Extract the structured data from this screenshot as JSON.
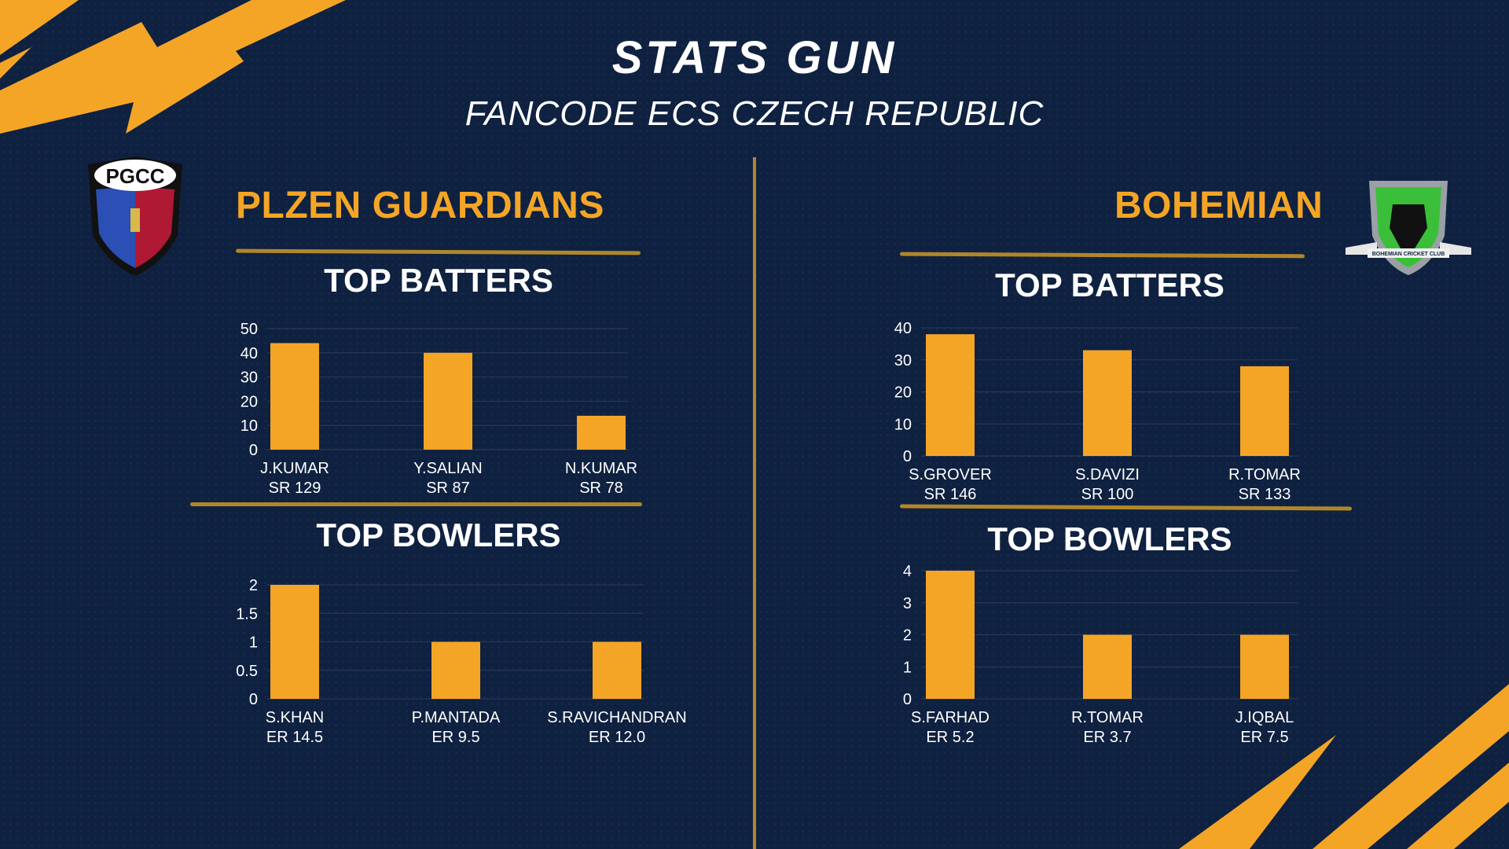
{
  "header": {
    "title": "STATS GUN",
    "subtitle": "FANCODE ECS CZECH REPUBLIC"
  },
  "teams": {
    "left": {
      "name": "PLZEN GUARDIANS",
      "logo_text": "PGCC"
    },
    "right": {
      "name": "BOHEMIAN",
      "logo_text": "BOHEMIAN CRICKET CLUB"
    }
  },
  "sections": {
    "left_batters": "TOP BATTERS",
    "left_bowlers": "TOP BOWLERS",
    "right_batters": "TOP BATTERS",
    "right_bowlers": "TOP BOWLERS"
  },
  "colors": {
    "background": "#0f2140",
    "accent": "#f5a526",
    "rule": "#b0862a",
    "text": "#ffffff"
  },
  "chart_data": [
    {
      "type": "bar",
      "title": "TOP BATTERS",
      "categories": [
        "J.KUMAR",
        "Y.SALIAN",
        "N.KUMAR"
      ],
      "sublabels": [
        "SR 129",
        "SR 87",
        "SR 78"
      ],
      "values": [
        44,
        40,
        14
      ],
      "ylim": [
        0,
        50
      ],
      "yticks": [
        "0",
        "10",
        "20",
        "30",
        "40",
        "50"
      ],
      "grid": true
    },
    {
      "type": "bar",
      "title": "TOP BOWLERS",
      "categories": [
        "S.KHAN",
        "P.MANTADA",
        "S.RAVICHANDRAN"
      ],
      "sublabels": [
        "ER 14.5",
        "ER 9.5",
        "ER 12.0"
      ],
      "values": [
        2,
        1,
        1
      ],
      "ylim": [
        0,
        2
      ],
      "yticks": [
        "0",
        "0.5",
        "1",
        "1.5",
        "2"
      ],
      "grid": true
    },
    {
      "type": "bar",
      "title": "TOP BATTERS",
      "categories": [
        "S.GROVER",
        "S.DAVIZI",
        "R.TOMAR"
      ],
      "sublabels": [
        "SR 146",
        "SR 100",
        "SR 133"
      ],
      "values": [
        38,
        33,
        28
      ],
      "ylim": [
        0,
        40
      ],
      "yticks": [
        "0",
        "10",
        "20",
        "30",
        "40"
      ],
      "grid": true
    },
    {
      "type": "bar",
      "title": "TOP BOWLERS",
      "categories": [
        "S.FARHAD",
        "R.TOMAR",
        "J.IQBAL"
      ],
      "sublabels": [
        "ER 5.2",
        "ER 3.7",
        "ER 7.5"
      ],
      "values": [
        4,
        2,
        2
      ],
      "ylim": [
        0,
        4
      ],
      "yticks": [
        "0",
        "1",
        "2",
        "3",
        "4"
      ],
      "grid": true
    }
  ]
}
